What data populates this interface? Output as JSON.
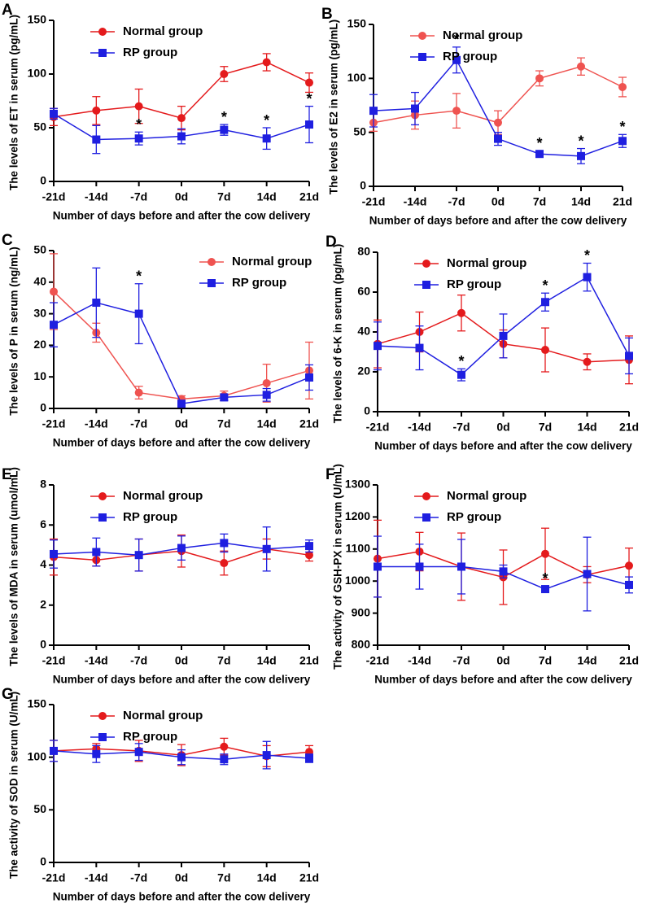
{
  "chart_data": [
    {
      "type": "line",
      "panel_label": "A",
      "ylabel": "The levels of ET in serum (pg/mL)",
      "xlabel": "Number of days before and after the cow delivery",
      "categories": [
        "-21d",
        "-14d",
        "-7d",
        "0d",
        "7d",
        "14d",
        "21d"
      ],
      "ylim": [
        0,
        150
      ],
      "yticks": [
        0,
        50,
        100,
        150
      ],
      "legend": "upper left",
      "series": [
        {
          "name": "Normal group",
          "color": "#e41a1c",
          "marker": "circle",
          "values": [
            60,
            66,
            70,
            59,
            100,
            111,
            92
          ],
          "errors": [
            8,
            13,
            16,
            11,
            7,
            8,
            9
          ]
        },
        {
          "name": "RP group",
          "color": "#1f1fe0",
          "marker": "square",
          "values": [
            63,
            39,
            40,
            42,
            48,
            40,
            53
          ],
          "errors": [
            5,
            13,
            6,
            7,
            5,
            10,
            17
          ]
        }
      ],
      "annotations": [
        {
          "text": "*",
          "x": "-7d"
        },
        {
          "text": "*",
          "x": "7d"
        },
        {
          "text": "*",
          "x": "14d"
        },
        {
          "text": "*",
          "x": "21d"
        }
      ]
    },
    {
      "type": "line",
      "panel_label": "B",
      "ylabel": "The levels of E2 in serum (pg/mL)",
      "xlabel": "Number of days before and after the cow delivery",
      "categories": [
        "-21d",
        "-14d",
        "-7d",
        "0d",
        "7d",
        "14d",
        "21d"
      ],
      "ylim": [
        0,
        150
      ],
      "yticks": [
        0,
        50,
        100,
        150
      ],
      "legend": "upper left",
      "series": [
        {
          "name": "Normal group",
          "color": "#ef5350",
          "marker": "circle",
          "values": [
            59,
            66,
            70,
            59,
            100,
            111,
            92
          ],
          "errors": [
            8,
            13,
            16,
            11,
            7,
            8,
            9
          ]
        },
        {
          "name": "RP group",
          "color": "#1f1fe0",
          "marker": "square",
          "values": [
            70,
            72,
            117,
            44,
            30,
            28,
            42
          ],
          "errors": [
            15,
            15,
            12,
            6,
            3,
            7,
            6
          ]
        }
      ],
      "annotations": [
        {
          "text": "*",
          "x": "-7d"
        },
        {
          "text": "*",
          "x": "7d"
        },
        {
          "text": "*",
          "x": "14d"
        },
        {
          "text": "*",
          "x": "21d"
        }
      ]
    },
    {
      "type": "line",
      "panel_label": "C",
      "ylabel": "The levels of P in serum (ng/mL)",
      "xlabel": "Number of days before and after the cow delivery",
      "categories": [
        "-21d",
        "-14d",
        "-7d",
        "0d",
        "7d",
        "14d",
        "21d"
      ],
      "ylim": [
        0,
        50
      ],
      "yticks": [
        0,
        10,
        20,
        30,
        40,
        50
      ],
      "legend": "upper right",
      "series": [
        {
          "name": "Normal group",
          "color": "#ef5350",
          "marker": "circle",
          "values": [
            37,
            24,
            5,
            3,
            4,
            8,
            12
          ],
          "errors": [
            12,
            3,
            2,
            1,
            1.5,
            6,
            9
          ]
        },
        {
          "name": "RP group",
          "color": "#1f1fe0",
          "marker": "square",
          "values": [
            26.5,
            33.5,
            30,
            1.5,
            3.5,
            4.3,
            9.8
          ],
          "errors": [
            7,
            11,
            9.5,
            1,
            1,
            2,
            4
          ]
        }
      ],
      "annotations": [
        {
          "text": "*",
          "x": "-7d"
        }
      ]
    },
    {
      "type": "line",
      "panel_label": "D",
      "ylabel": "The levels of 6-K in serum (pg/mL)",
      "xlabel": "Number of days before and after the cow delivery",
      "categories": [
        "-21d",
        "-14d",
        "-7d",
        "0d",
        "7d",
        "14d",
        "21d"
      ],
      "ylim": [
        0,
        80
      ],
      "yticks": [
        0,
        20,
        40,
        60,
        80
      ],
      "legend": "upper left",
      "series": [
        {
          "name": "Normal group",
          "color": "#e41a1c",
          "marker": "circle",
          "values": [
            34,
            40,
            49.5,
            34,
            31,
            25,
            26
          ],
          "errors": [
            12,
            10,
            9,
            7,
            11,
            4,
            12
          ]
        },
        {
          "name": "RP group",
          "color": "#1f1fe0",
          "marker": "square",
          "values": [
            33,
            32,
            18.5,
            38,
            55,
            67.5,
            28
          ],
          "errors": [
            12,
            11,
            3,
            11,
            4.5,
            7,
            9
          ]
        }
      ],
      "annotations": [
        {
          "text": "*",
          "x": "-7d"
        },
        {
          "text": "*",
          "x": "7d"
        },
        {
          "text": "*",
          "x": "14d"
        }
      ]
    },
    {
      "type": "line",
      "panel_label": "E",
      "ylabel": "The levels of MDA in serum (umol/mL)",
      "xlabel": "Number of days before and after the cow delivery",
      "categories": [
        "-21d",
        "-14d",
        "-7d",
        "0d",
        "7d",
        "14d",
        "21d"
      ],
      "ylim": [
        0,
        8
      ],
      "yticks": [
        0,
        2,
        4,
        6,
        8
      ],
      "legend": "upper left",
      "series": [
        {
          "name": "Normal group",
          "color": "#e41a1c",
          "marker": "circle",
          "values": [
            4.4,
            4.25,
            4.5,
            4.7,
            4.1,
            4.8,
            4.5
          ],
          "errors": [
            0.9,
            0.3,
            0.8,
            0.8,
            0.6,
            0.5,
            0.3
          ]
        },
        {
          "name": "RP group",
          "color": "#1f1fe0",
          "marker": "square",
          "values": [
            4.55,
            4.65,
            4.5,
            4.85,
            5.1,
            4.8,
            4.95
          ],
          "errors": [
            0.7,
            0.7,
            0.8,
            0.6,
            0.45,
            1.1,
            0.3
          ]
        }
      ],
      "annotations": []
    },
    {
      "type": "line",
      "panel_label": "F",
      "ylabel": "The activity of GSH-PX in serum (U/mL)",
      "xlabel": "Number of days before and after the cow delivery",
      "categories": [
        "-21d",
        "-14d",
        "-7d",
        "0d",
        "7d",
        "14d",
        "21d"
      ],
      "ylim": [
        800,
        1300
      ],
      "yticks": [
        800,
        900,
        1000,
        1100,
        1200,
        1300
      ],
      "legend": "upper left",
      "series": [
        {
          "name": "Normal group",
          "color": "#e41a1c",
          "marker": "circle",
          "values": [
            1070,
            1092,
            1045,
            1012,
            1085,
            1020,
            1048
          ],
          "errors": [
            120,
            60,
            105,
            85,
            80,
            25,
            55
          ]
        },
        {
          "name": "RP group",
          "color": "#1f1fe0",
          "marker": "square",
          "values": [
            1045,
            1045,
            1045,
            1030,
            975,
            1022,
            988
          ],
          "errors": [
            95,
            70,
            85,
            20,
            10,
            115,
            25
          ]
        }
      ],
      "annotations": [
        {
          "text": "*",
          "x": "7d"
        }
      ]
    },
    {
      "type": "line",
      "panel_label": "G",
      "ylabel": "The activity of SOD in serum (U/mL)",
      "xlabel": "Number of days before and after the cow delivery",
      "categories": [
        "-21d",
        "-14d",
        "-7d",
        "0d",
        "7d",
        "14d",
        "21d"
      ],
      "ylim": [
        0,
        150
      ],
      "yticks": [
        0,
        50,
        100,
        150
      ],
      "legend": "upper left",
      "series": [
        {
          "name": "Normal group",
          "color": "#e41a1c",
          "marker": "circle",
          "values": [
            106,
            108,
            106,
            102,
            110,
            101,
            105
          ],
          "errors": [
            10,
            5,
            10,
            10,
            8,
            10,
            6
          ]
        },
        {
          "name": "RP group",
          "color": "#1f1fe0",
          "marker": "square",
          "values": [
            106,
            103,
            105,
            100,
            98,
            102,
            99
          ],
          "errors": [
            10,
            8,
            8,
            7,
            5,
            13,
            4
          ]
        }
      ],
      "annotations": []
    }
  ]
}
